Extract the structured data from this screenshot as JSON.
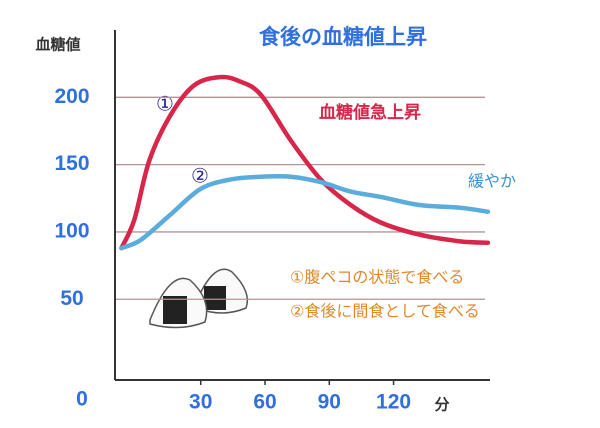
{
  "chart_data": {
    "type": "line",
    "title": "食後の血糖値上昇",
    "y_label": "血糖値",
    "x_label": "分",
    "origin_label": "0",
    "xlim": [
      -10,
      165
    ],
    "ylim": [
      -10,
      250
    ],
    "xticks": [
      30,
      60,
      90,
      120
    ],
    "yticks": [
      50,
      100,
      150,
      200
    ],
    "grid": true,
    "series": [
      {
        "name": "①",
        "color": "#d8264a",
        "x": [
          -7,
          -1,
          6,
          16,
          27,
          39,
          48,
          58,
          72,
          86,
          100,
          114,
          132,
          151,
          164
        ],
        "values": [
          88,
          109,
          153,
          187,
          209,
          215,
          212,
          202,
          168,
          139,
          120,
          107,
          98,
          93,
          92
        ]
      },
      {
        "name": "②",
        "color": "#5aacdc",
        "x": [
          -7,
          2,
          16,
          30,
          44,
          58,
          72,
          86,
          100,
          114,
          132,
          151,
          164
        ],
        "values": [
          88,
          94,
          113,
          132,
          139,
          141,
          141,
          137,
          130,
          126,
          120,
          118,
          115
        ]
      }
    ],
    "annotations": [
      "血糖値急上昇",
      "緩やか",
      "①腹ペコの状態で食べる",
      "②食後に間食として食べる"
    ]
  }
}
